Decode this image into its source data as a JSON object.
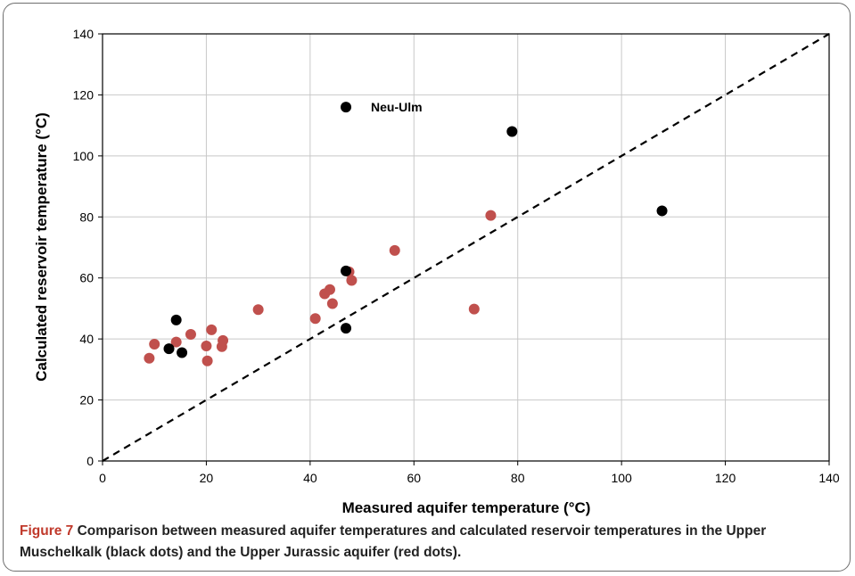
{
  "chart_data": {
    "type": "scatter",
    "xlabel": "Measured aquifer temperature (°C)",
    "ylabel": "Calculated reservoir temperature (°C)",
    "xlim": [
      0,
      140
    ],
    "ylim": [
      0,
      140
    ],
    "x_ticks": [
      0,
      20,
      40,
      60,
      80,
      100,
      120,
      140
    ],
    "y_ticks": [
      0,
      20,
      40,
      60,
      80,
      100,
      120,
      140
    ],
    "grid": true,
    "reference_line": {
      "from": [
        0,
        0
      ],
      "to": [
        140,
        140
      ],
      "style": "dashed"
    },
    "series": [
      {
        "color": "#c0504d",
        "points": [
          [
            9,
            33.7
          ],
          [
            10,
            38.3
          ],
          [
            14.2,
            39
          ],
          [
            17,
            41.5
          ],
          [
            20,
            37.7
          ],
          [
            20.2,
            32.8
          ],
          [
            21,
            43
          ],
          [
            23,
            37.5
          ],
          [
            23.2,
            39.5
          ],
          [
            30,
            49.6
          ],
          [
            41,
            46.7
          ],
          [
            42.8,
            54.8
          ],
          [
            43.8,
            56.2
          ],
          [
            44.3,
            51.6
          ],
          [
            47.5,
            62
          ],
          [
            48,
            59.2
          ],
          [
            56.3,
            69
          ],
          [
            71.6,
            49.8
          ],
          [
            74.8,
            80.5
          ]
        ]
      },
      {
        "color": "#000000",
        "points": [
          [
            12.8,
            36.8
          ],
          [
            14.2,
            46.2
          ],
          [
            15.3,
            35.5
          ],
          [
            46.9,
            116
          ],
          [
            46.9,
            62.3
          ],
          [
            46.9,
            43.5
          ],
          [
            78.9,
            108
          ],
          [
            107.8,
            82
          ]
        ]
      }
    ],
    "annotations": [
      {
        "text": "Neu-Ulm",
        "x": 46.9,
        "y": 116
      }
    ]
  },
  "caption": {
    "lead": "Figure 7",
    "text": "Comparison between measured aquifer temperatures and calculated reservoir temperatures in the Upper Muschelkalk (black dots) and the Upper Jurassic aquifer (red dots)."
  }
}
